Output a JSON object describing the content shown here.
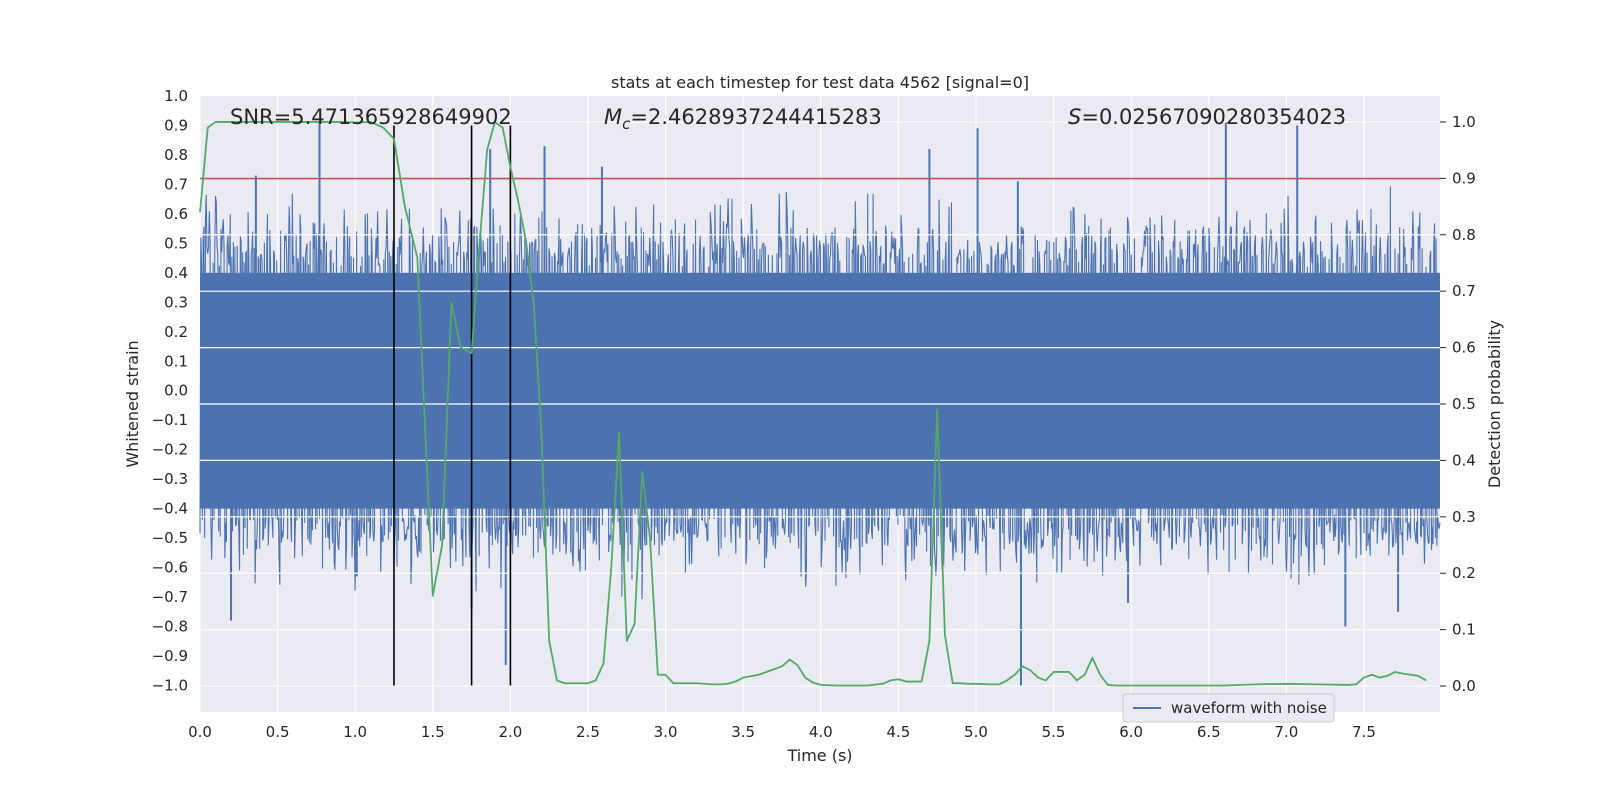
{
  "chart_data": {
    "type": "line",
    "title": "stats at each timestep for test data 4562 [signal=0]",
    "xlabel": "Time (s)",
    "ylabel": "Whitened strain",
    "y2label": "Detection probability",
    "xlim": [
      0,
      7.99
    ],
    "ylim": [
      -1.09,
      1.0
    ],
    "y2lim": [
      -0.046,
      1.046
    ],
    "x_ticks": [
      0.0,
      0.5,
      1.0,
      1.5,
      2.0,
      2.5,
      3.0,
      3.5,
      4.0,
      4.5,
      5.0,
      5.5,
      6.0,
      6.5,
      7.0,
      7.5
    ],
    "x_tick_labels": [
      "0.0",
      "0.5",
      "1.0",
      "1.5",
      "2.0",
      "2.5",
      "3.0",
      "3.5",
      "4.0",
      "4.5",
      "5.0",
      "5.5",
      "6.0",
      "6.5",
      "7.0",
      "7.5"
    ],
    "y_ticks": [
      1.0,
      0.9,
      0.8,
      0.7,
      0.6,
      0.5,
      0.4,
      0.3,
      0.2,
      0.1,
      0.0,
      -0.1,
      -0.2,
      -0.3,
      -0.4,
      -0.5,
      -0.6,
      -0.7,
      -0.8,
      -0.9,
      -1.0
    ],
    "y_tick_labels": [
      "1.0",
      "0.9",
      "0.8",
      "0.7",
      "0.6",
      "0.5",
      "0.4",
      "0.3",
      "0.2",
      "0.1",
      "0.0",
      "−0.1",
      "−0.2",
      "−0.3",
      "−0.4",
      "−0.5",
      "−0.6",
      "−0.7",
      "−0.8",
      "−0.9",
      "−1.0"
    ],
    "y2_ticks": [
      1.0,
      0.9,
      0.8,
      0.7,
      0.6,
      0.5,
      0.4,
      0.3,
      0.2,
      0.1,
      0.0
    ],
    "y2_tick_labels": [
      "1.0",
      "0.9",
      "0.8",
      "0.7",
      "0.6",
      "0.5",
      "0.4",
      "0.3",
      "0.2",
      "0.1",
      "0.0"
    ],
    "stats": {
      "snr": "SNR=5.471365928649902",
      "mc_symbol": "M",
      "mc_sub": "c",
      "mc_value": "=2.4628937244415283",
      "s_symbol": "S",
      "s_value": "=0.02567090280354023"
    },
    "legend": {
      "label": "waveform with noise",
      "placement": "lower-right"
    },
    "waveform": {
      "name": "waveform with noise",
      "color": "#4c72b0",
      "n_samples": 1600,
      "core_amplitude": 0.42,
      "spikes": [
        {
          "t": 0.2,
          "v": -0.78
        },
        {
          "t": 0.36,
          "v": 0.73
        },
        {
          "t": 0.77,
          "v": 0.91
        },
        {
          "t": 1.01,
          "v": -0.63
        },
        {
          "t": 1.75,
          "v": -0.74
        },
        {
          "t": 1.87,
          "v": 0.82
        },
        {
          "t": 1.97,
          "v": -0.93
        },
        {
          "t": 2.22,
          "v": 0.83
        },
        {
          "t": 2.59,
          "v": 0.76
        },
        {
          "t": 4.7,
          "v": 0.82
        },
        {
          "t": 5.01,
          "v": 0.89
        },
        {
          "t": 5.29,
          "v": -1.0
        },
        {
          "t": 6.61,
          "v": 0.91
        },
        {
          "t": 7.07,
          "v": 0.9
        },
        {
          "t": 7.38,
          "v": -0.8
        },
        {
          "t": 7.72,
          "v": -0.75
        },
        {
          "t": 5.27,
          "v": 0.71
        },
        {
          "t": 5.98,
          "v": -0.72
        }
      ]
    },
    "series": [
      {
        "name": "detection probability",
        "color": "#55a868",
        "axis": "right",
        "x": [
          0.0,
          0.05,
          0.1,
          0.15,
          0.3,
          0.5,
          0.7,
          0.9,
          1.0,
          1.1,
          1.18,
          1.25,
          1.32,
          1.4,
          1.5,
          1.56,
          1.62,
          1.68,
          1.75,
          1.8,
          1.85,
          1.9,
          1.95,
          2.0,
          2.05,
          2.1,
          2.15,
          2.2,
          2.25,
          2.3,
          2.35,
          2.4,
          2.45,
          2.5,
          2.55,
          2.6,
          2.65,
          2.7,
          2.75,
          2.8,
          2.85,
          2.9,
          2.95,
          3.0,
          3.05,
          3.1,
          3.2,
          3.3,
          3.35,
          3.4,
          3.45,
          3.5,
          3.6,
          3.7,
          3.75,
          3.8,
          3.85,
          3.9,
          3.95,
          4.0,
          4.1,
          4.2,
          4.3,
          4.4,
          4.45,
          4.5,
          4.55,
          4.6,
          4.65,
          4.7,
          4.75,
          4.8,
          4.85,
          4.9,
          4.95,
          5.0,
          5.1,
          5.15,
          5.2,
          5.25,
          5.3,
          5.35,
          5.4,
          5.45,
          5.5,
          5.55,
          5.6,
          5.65,
          5.7,
          5.75,
          5.8,
          5.85,
          5.9,
          6.0,
          6.2,
          6.4,
          6.6,
          6.8,
          7.0,
          7.2,
          7.4,
          7.45,
          7.5,
          7.55,
          7.6,
          7.65,
          7.7,
          7.75,
          7.8,
          7.85,
          7.9
        ],
        "values": [
          0.84,
          0.99,
          1.0,
          1.0,
          1.0,
          1.0,
          1.0,
          1.0,
          0.999,
          1.0,
          0.99,
          0.97,
          0.85,
          0.76,
          0.16,
          0.25,
          0.68,
          0.6,
          0.59,
          0.78,
          0.95,
          1.0,
          0.99,
          0.92,
          0.86,
          0.79,
          0.68,
          0.45,
          0.08,
          0.01,
          0.005,
          0.005,
          0.005,
          0.005,
          0.01,
          0.04,
          0.21,
          0.45,
          0.08,
          0.11,
          0.38,
          0.26,
          0.02,
          0.02,
          0.005,
          0.005,
          0.005,
          0.003,
          0.003,
          0.004,
          0.008,
          0.015,
          0.02,
          0.03,
          0.035,
          0.047,
          0.037,
          0.015,
          0.006,
          0.002,
          0.001,
          0.001,
          0.001,
          0.004,
          0.01,
          0.012,
          0.008,
          0.008,
          0.008,
          0.08,
          0.49,
          0.09,
          0.005,
          0.005,
          0.004,
          0.004,
          0.003,
          0.003,
          0.01,
          0.02,
          0.035,
          0.028,
          0.015,
          0.01,
          0.025,
          0.025,
          0.025,
          0.01,
          0.02,
          0.05,
          0.02,
          0.002,
          0.001,
          0.001,
          0.001,
          0.001,
          0.001,
          0.003,
          0.004,
          0.003,
          0.002,
          0.003,
          0.015,
          0.02,
          0.015,
          0.018,
          0.025,
          0.022,
          0.02,
          0.018,
          0.01
        ]
      }
    ],
    "threshold": {
      "value": 0.72,
      "color": "#c44e52",
      "axis": "left"
    },
    "vlines": [
      1.25,
      1.75,
      2.0
    ]
  }
}
